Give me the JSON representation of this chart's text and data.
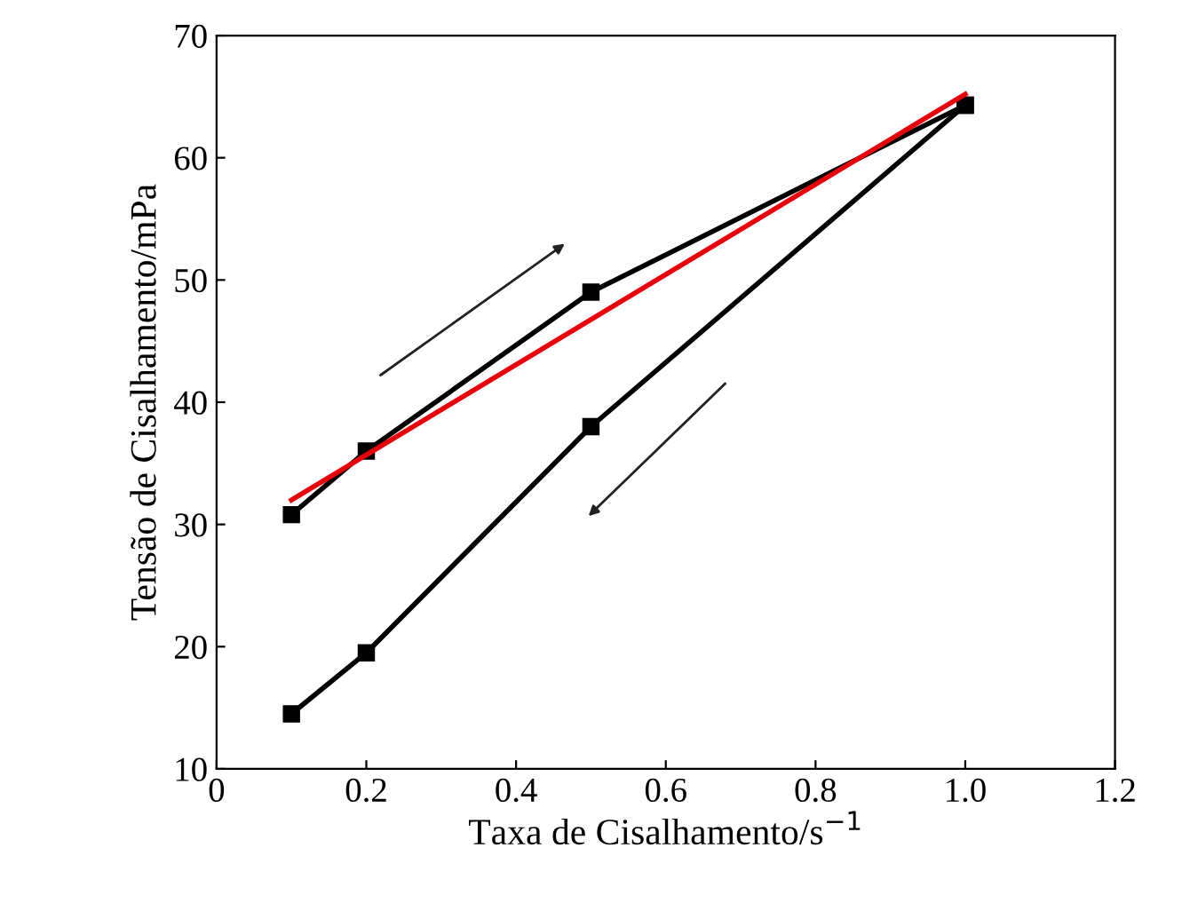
{
  "chart_data": {
    "type": "line",
    "xlabel": "Taxa de Cisalhamento/s$^{−1}$",
    "ylabel": "Tensão de Cisalhamento/mPa",
    "series": [
      {
        "color": "#000000",
        "x": [
          0.1,
          0.2,
          0.5,
          1.0
        ],
        "values": [
          30.8,
          36,
          49,
          64.3
        ],
        "marker": "square"
      },
      {
        "color": "#000000",
        "x": [
          1.0,
          0.5,
          0.2,
          0.1
        ],
        "values": [
          64.3,
          38,
          19.5,
          14.5
        ],
        "marker": "square"
      },
      {
        "color": "#e8000b",
        "x": [
          0.1,
          1.0
        ],
        "values": [
          32,
          65.2
        ],
        "marker": "none"
      }
    ],
    "xlim": [
      0,
      1.2
    ],
    "xticks": [
      0,
      0.2,
      0.4,
      0.6,
      0.8,
      {
        "value": 1,
        "label": "1.0"
      },
      1.2
    ],
    "ylim": [
      10,
      70
    ],
    "yticks": [
      10,
      20,
      30,
      40,
      50,
      60,
      70
    ],
    "grid": false,
    "legend": false
  }
}
